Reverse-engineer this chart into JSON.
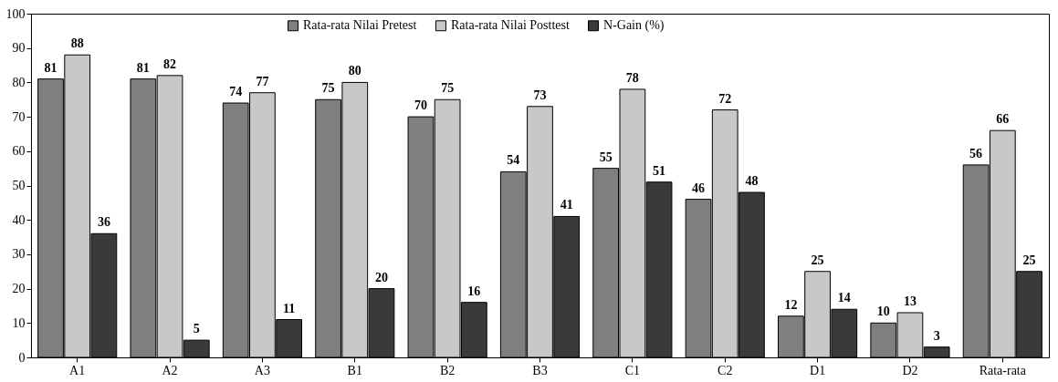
{
  "chart_data": {
    "type": "bar",
    "categories": [
      "A1",
      "A2",
      "A3",
      "B1",
      "B2",
      "B3",
      "C1",
      "C2",
      "D1",
      "D2",
      "Rata-rata"
    ],
    "series": [
      {
        "name": "Rata-rata Nilai Pretest",
        "color": "#7f7f7f",
        "values": [
          81,
          81,
          74,
          75,
          70,
          54,
          55,
          46,
          12,
          10,
          56
        ]
      },
      {
        "name": "Rata-rata Nilai Posttest",
        "color": "#c8c8c8",
        "values": [
          88,
          82,
          77,
          80,
          75,
          73,
          78,
          72,
          25,
          13,
          66
        ]
      },
      {
        "name": "N-Gain (%)",
        "color": "#3a3a3a",
        "values": [
          36,
          5,
          11,
          20,
          16,
          41,
          51,
          48,
          14,
          3,
          25
        ]
      }
    ],
    "ylim": [
      0,
      100
    ],
    "yticks": [
      0,
      10,
      20,
      30,
      40,
      50,
      60,
      70,
      80,
      90,
      100
    ],
    "grid": false,
    "legend": "top",
    "data_labels": true
  }
}
